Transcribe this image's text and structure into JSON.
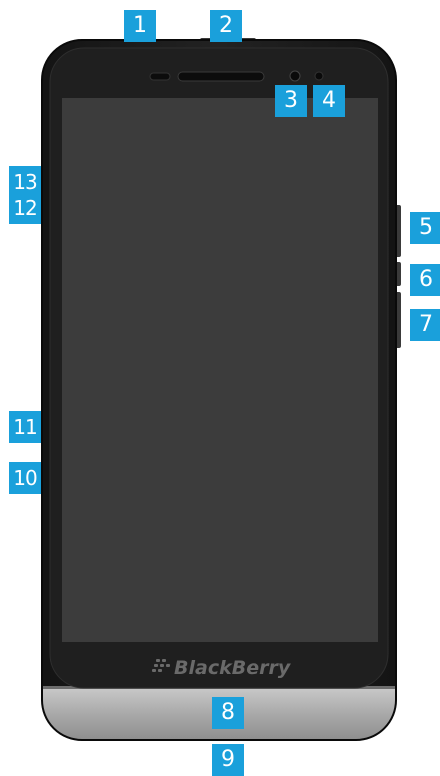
{
  "device": {
    "brand_wordmark": "BlackBerry",
    "colors": {
      "body": "#1c1c1c",
      "bezel": "#2a2a2a",
      "screen": "#3d3d3d",
      "bottom_cap": "#b5b5b5",
      "callout": "#1aa0db"
    }
  },
  "callouts": [
    {
      "id": "1",
      "label": "1",
      "target": "headset-jack"
    },
    {
      "id": "2",
      "label": "2",
      "target": "power-lock-key"
    },
    {
      "id": "3",
      "label": "3",
      "target": "front-camera"
    },
    {
      "id": "4",
      "label": "4",
      "target": "proximity-sensor"
    },
    {
      "id": "5",
      "label": "5",
      "target": "volume-up-key"
    },
    {
      "id": "6",
      "label": "6",
      "target": "mute-key"
    },
    {
      "id": "7",
      "label": "7",
      "target": "volume-down-key"
    },
    {
      "id": "8",
      "label": "8",
      "target": "microphone"
    },
    {
      "id": "9",
      "label": "9",
      "target": "usb-port"
    },
    {
      "id": "10",
      "label": "10",
      "target": "micro-sd-slot"
    },
    {
      "id": "11",
      "label": "11",
      "target": "sim-card-slot"
    },
    {
      "id": "12",
      "label": "12",
      "target": "side-slot-upper"
    },
    {
      "id": "13",
      "label": "13",
      "target": "side-slot-top"
    }
  ]
}
